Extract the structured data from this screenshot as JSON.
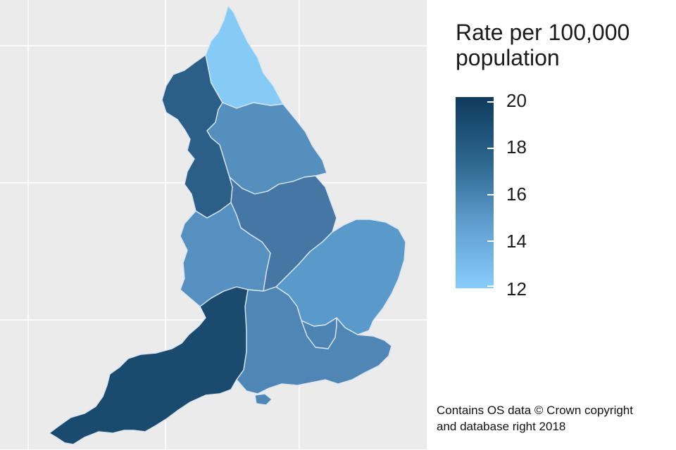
{
  "legend": {
    "title_line1": "Rate per 100,000",
    "title_line2": "population",
    "ticks": [
      "20",
      "18",
      "16",
      "14",
      "12"
    ],
    "range": [
      12,
      20
    ],
    "low_color": "#87cdfb",
    "high_color": "#0f3a5c"
  },
  "credit": {
    "line1": "Contains OS data © Crown copyright",
    "line2": "and database right 2018"
  },
  "regions": [
    {
      "name": "North East",
      "color": "#86cbf6"
    },
    {
      "name": "North West",
      "color": "#2c5f88"
    },
    {
      "name": "Yorkshire and The Humber",
      "color": "#558fbd"
    },
    {
      "name": "East Midlands",
      "color": "#4677a4"
    },
    {
      "name": "West Midlands",
      "color": "#5690c0"
    },
    {
      "name": "East of England",
      "color": "#5a9acb"
    },
    {
      "name": "London",
      "color": "#4c84b4"
    },
    {
      "name": "South East",
      "color": "#4f86b5"
    },
    {
      "name": "South West",
      "color": "#1b4a6f"
    }
  ]
}
